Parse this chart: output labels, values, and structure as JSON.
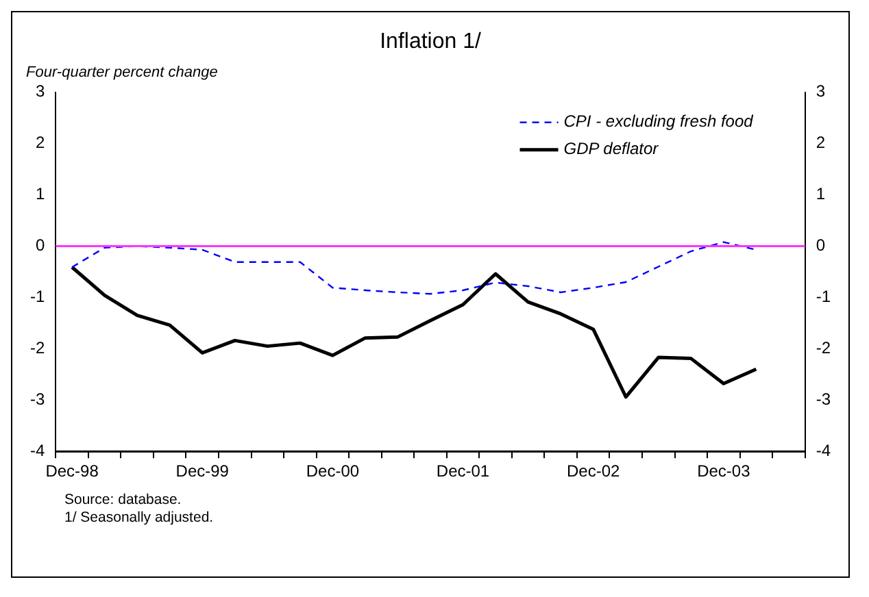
{
  "chart_data": {
    "type": "line",
    "title": "Inflation 1/",
    "ylabel": "Four-quarter percent change",
    "categories": [
      "Dec-98",
      null,
      null,
      null,
      "Dec-99",
      null,
      null,
      null,
      "Dec-00",
      null,
      null,
      null,
      "Dec-01",
      null,
      null,
      null,
      "Dec-02",
      null,
      null,
      null,
      "Dec-03",
      null,
      null
    ],
    "series": [
      {
        "name": "CPI - excluding fresh food",
        "color": "#0000ff",
        "line_style": "dashed",
        "values": [
          -0.41,
          -0.03,
          0.0,
          -0.03,
          -0.07,
          -0.31,
          -0.31,
          -0.31,
          -0.81,
          -0.86,
          -0.9,
          -0.93,
          -0.86,
          -0.71,
          -0.78,
          -0.9,
          -0.81,
          -0.7,
          -0.4,
          -0.1,
          0.08,
          -0.07,
          null
        ]
      },
      {
        "name": "GDP deflator",
        "color": "#000000",
        "line_style": "solid",
        "values": [
          -0.41,
          -0.96,
          -1.35,
          -1.54,
          -2.08,
          -1.84,
          -1.95,
          -1.89,
          -2.13,
          -1.79,
          -1.77,
          -1.45,
          -1.14,
          -0.54,
          -1.09,
          -1.32,
          -1.62,
          -2.94,
          -2.17,
          -2.19,
          -2.68,
          -2.4,
          null
        ]
      }
    ],
    "ylim": [
      -4,
      3
    ],
    "yticks": [
      -4,
      -3,
      -2,
      -1,
      0,
      1,
      2,
      3
    ],
    "y2lim": [
      -4,
      3
    ],
    "y2ticks": [
      -4,
      -3,
      -2,
      -1,
      0,
      1,
      2,
      3
    ],
    "ref_lines": [
      {
        "axis": "y",
        "value": 0,
        "color": "#ff33ff"
      }
    ],
    "grid": false,
    "legend": "top right",
    "annotations": [
      "Source: database.",
      "1/ Seasonally adjusted."
    ]
  }
}
